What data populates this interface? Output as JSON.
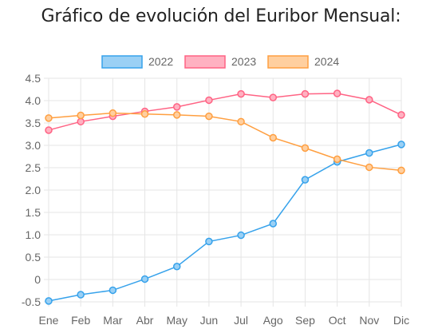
{
  "title": "Gráfico de evolución del Euribor Mensual:",
  "chart_data": {
    "type": "line",
    "title": "Gráfico de evolución del Euribor Mensual:",
    "categories": [
      "Ene",
      "Feb",
      "Mar",
      "Abr",
      "May",
      "Jun",
      "Jul",
      "Ago",
      "Sep",
      "Oct",
      "Nov",
      "Dic"
    ],
    "yticks": [
      "4.5",
      "4.0",
      "3.5",
      "3.0",
      "2.5",
      "2.0",
      "1.5",
      "1.0",
      "0.5",
      "0",
      "-0.5"
    ],
    "ylim": [
      -0.5,
      4.5
    ],
    "grid": true,
    "legend_position": "top-center",
    "series": [
      {
        "name": "2022",
        "color": "#36a2eb",
        "fill": "#9ad0f5",
        "values": [
          -0.48,
          -0.34,
          -0.24,
          0.01,
          0.29,
          0.85,
          0.99,
          1.25,
          2.23,
          2.63,
          2.83,
          3.02
        ]
      },
      {
        "name": "2023",
        "color": "#ff6384",
        "fill": "#ffb1c1",
        "values": [
          3.34,
          3.53,
          3.65,
          3.76,
          3.86,
          4.01,
          4.15,
          4.07,
          4.15,
          4.16,
          4.02,
          3.68
        ]
      },
      {
        "name": "2024",
        "color": "#ff9f40",
        "fill": "#ffcf9f",
        "values": [
          3.61,
          3.67,
          3.72,
          3.7,
          3.68,
          3.65,
          3.53,
          3.17,
          2.94,
          2.69,
          2.51,
          2.44
        ]
      }
    ]
  }
}
